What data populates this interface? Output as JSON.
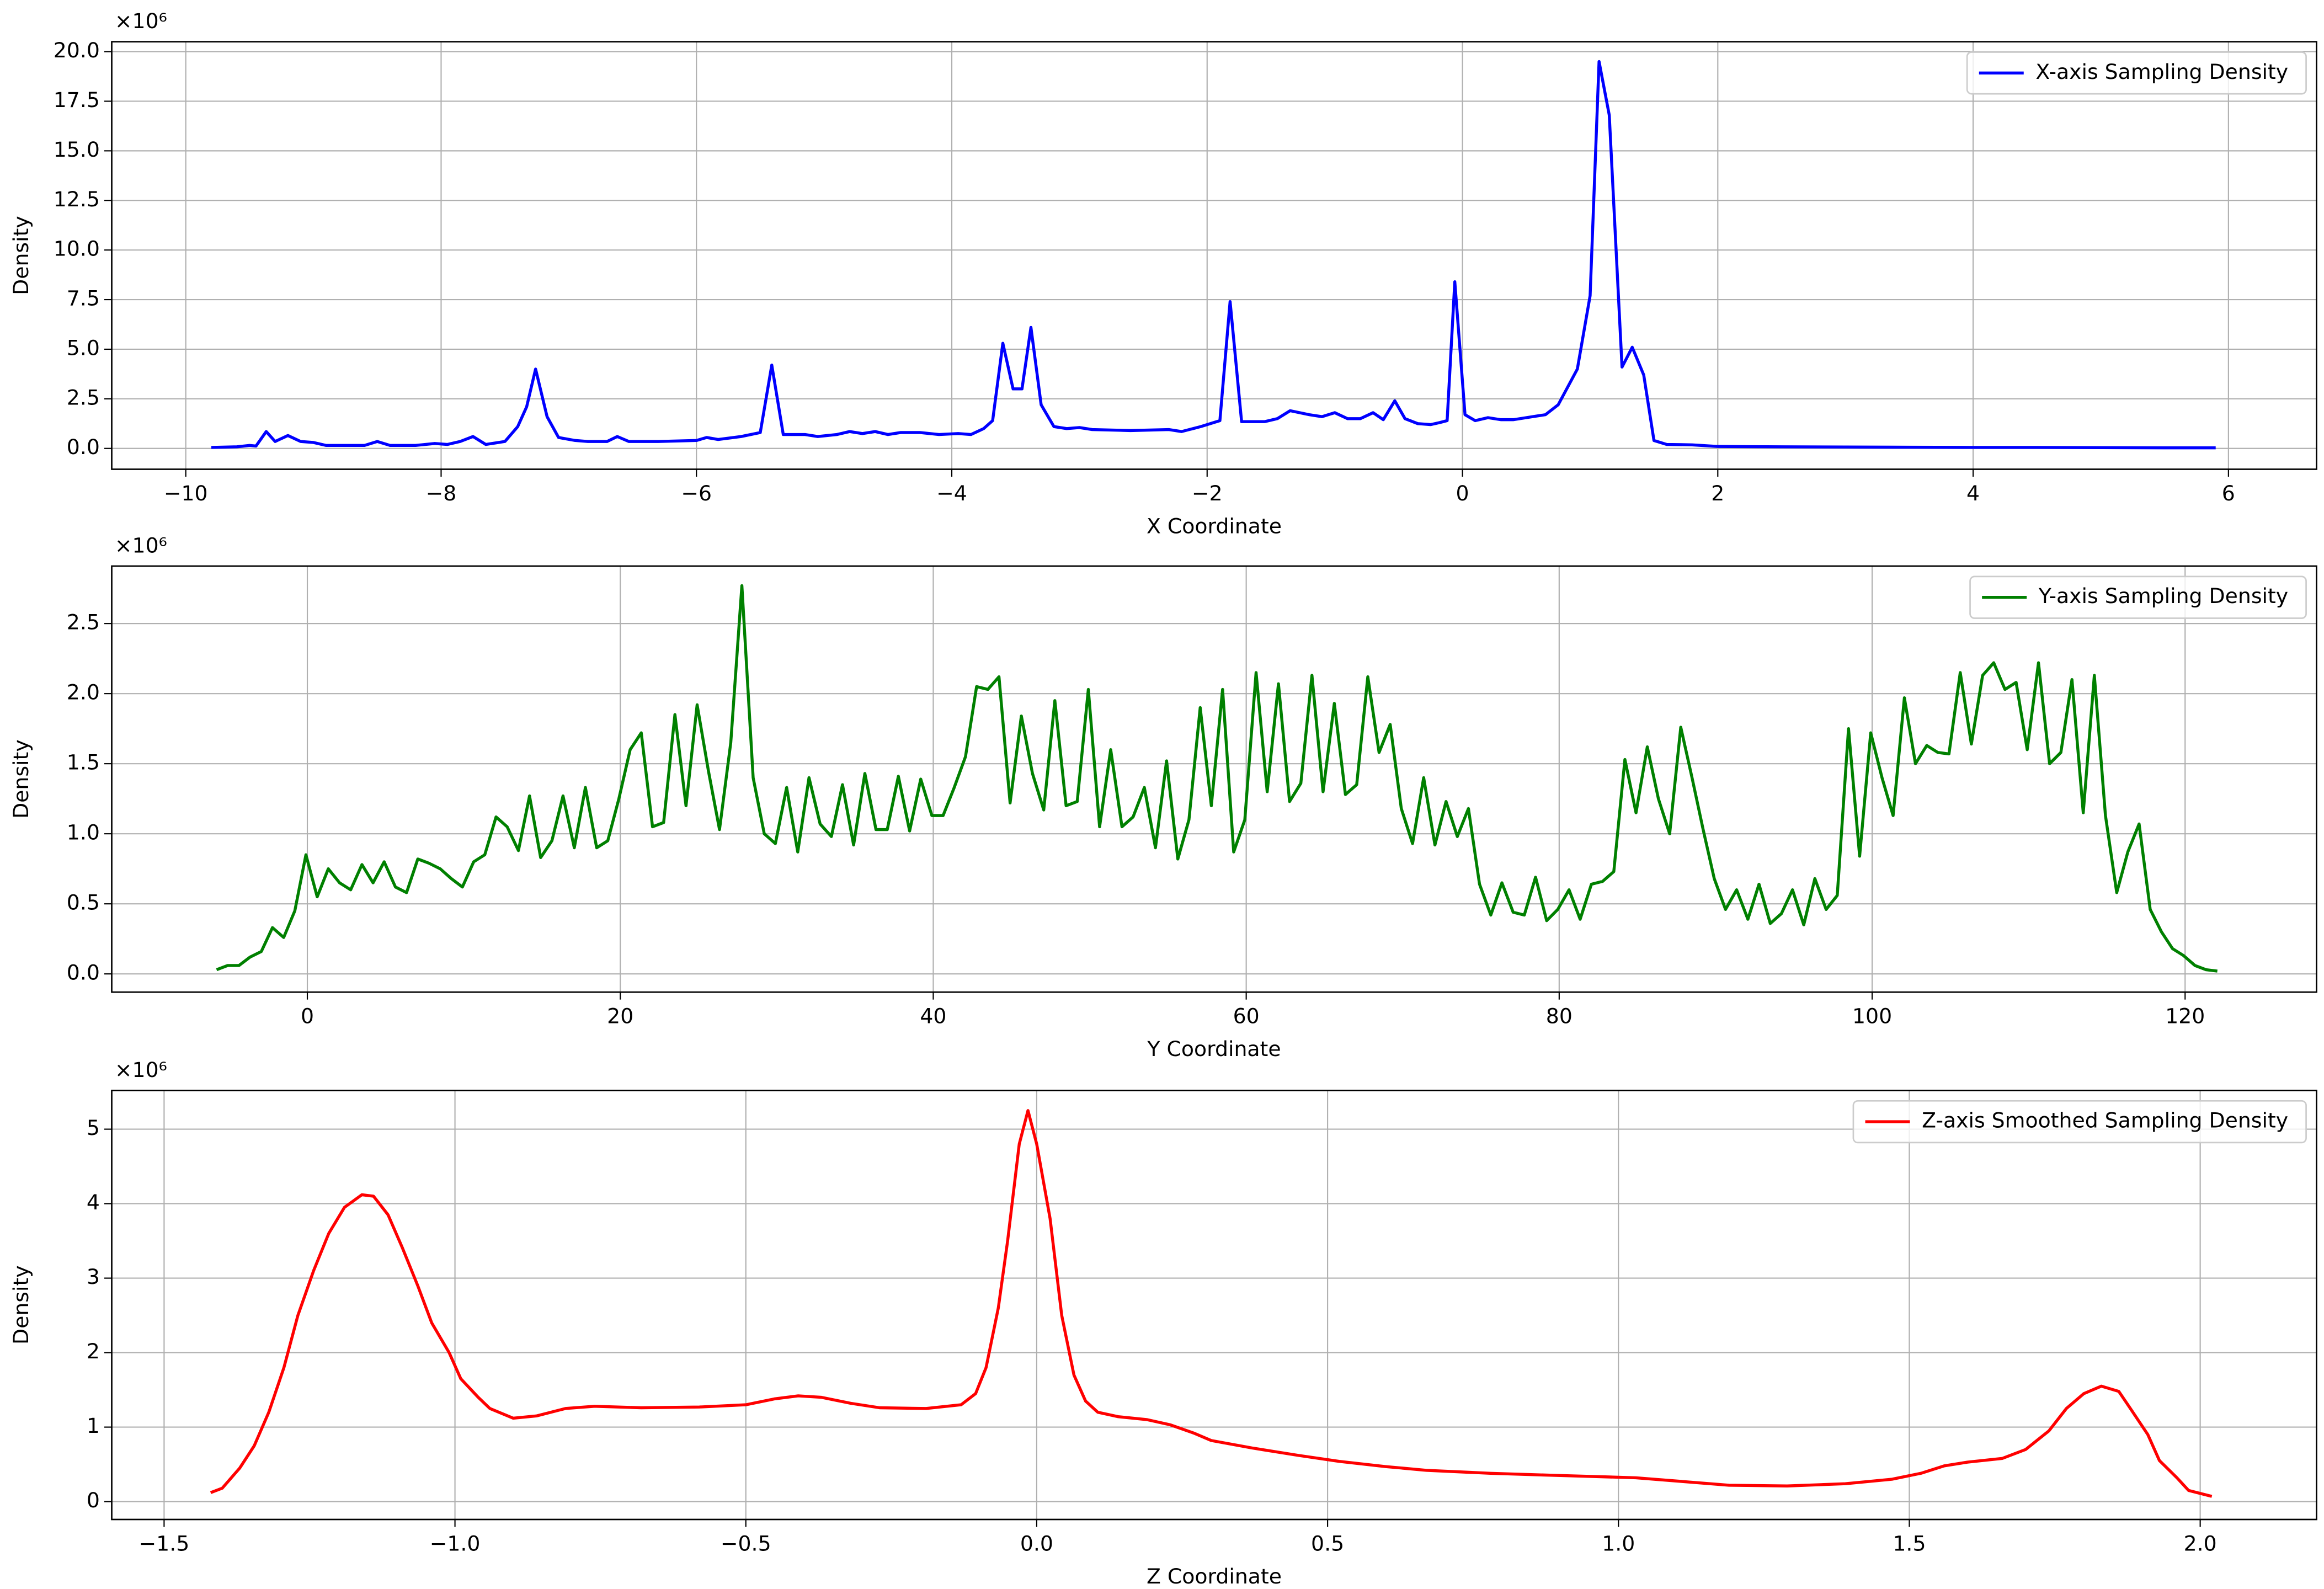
{
  "chart_data": [
    {
      "type": "line",
      "x_label": "X Coordinate",
      "y_label": "Density",
      "y_offset_label": "×10⁶",
      "x": [
        -9.8,
        -9.6,
        -9.5,
        -9.45,
        -9.37,
        -9.3,
        -9.2,
        -9.1,
        -9.0,
        -8.9,
        -8.6,
        -8.5,
        -8.4,
        -8.2,
        -8.05,
        -7.95,
        -7.85,
        -7.75,
        -7.65,
        -7.5,
        -7.4,
        -7.33,
        -7.26,
        -7.17,
        -7.08,
        -6.95,
        -6.85,
        -6.7,
        -6.62,
        -6.53,
        -6.3,
        -6.0,
        -5.92,
        -5.83,
        -5.65,
        -5.5,
        -5.41,
        -5.32,
        -5.15,
        -5.05,
        -4.9,
        -4.8,
        -4.7,
        -4.6,
        -4.5,
        -4.4,
        -4.25,
        -4.1,
        -3.95,
        -3.85,
        -3.75,
        -3.68,
        -3.6,
        -3.52,
        -3.45,
        -3.38,
        -3.3,
        -3.2,
        -3.1,
        -3.0,
        -2.9,
        -2.6,
        -2.3,
        -2.2,
        -2.05,
        -1.9,
        -1.82,
        -1.73,
        -1.55,
        -1.45,
        -1.35,
        -1.2,
        -1.1,
        -1.0,
        -0.9,
        -0.8,
        -0.7,
        -0.62,
        -0.53,
        -0.45,
        -0.35,
        -0.25,
        -0.18,
        -0.12,
        -0.06,
        0.02,
        0.1,
        0.2,
        0.3,
        0.4,
        0.5,
        0.65,
        0.75,
        0.9,
        1.0,
        1.07,
        1.15,
        1.25,
        1.33,
        1.42,
        1.5,
        1.6,
        1.8,
        2.0,
        2.5,
        3.0,
        3.5,
        4.0,
        4.5,
        5.0,
        5.5,
        5.9
      ],
      "series": [
        {
          "name": "X-axis Sampling Density",
          "color": "#0000ff",
          "values": [
            0.05,
            0.08,
            0.15,
            0.12,
            0.85,
            0.35,
            0.65,
            0.35,
            0.3,
            0.15,
            0.15,
            0.35,
            0.15,
            0.15,
            0.25,
            0.2,
            0.35,
            0.6,
            0.2,
            0.35,
            1.1,
            2.1,
            4.0,
            1.6,
            0.55,
            0.4,
            0.35,
            0.35,
            0.6,
            0.35,
            0.35,
            0.4,
            0.55,
            0.45,
            0.6,
            0.8,
            4.2,
            0.7,
            0.7,
            0.6,
            0.7,
            0.85,
            0.75,
            0.85,
            0.7,
            0.8,
            0.8,
            0.7,
            0.75,
            0.7,
            1.0,
            1.4,
            5.3,
            3.0,
            3.0,
            6.1,
            2.2,
            1.1,
            1.0,
            1.05,
            0.95,
            0.9,
            0.95,
            0.85,
            1.1,
            1.4,
            7.4,
            1.35,
            1.35,
            1.5,
            1.9,
            1.7,
            1.6,
            1.8,
            1.5,
            1.5,
            1.8,
            1.45,
            2.4,
            1.5,
            1.25,
            1.2,
            1.3,
            1.4,
            8.4,
            1.7,
            1.4,
            1.55,
            1.45,
            1.45,
            1.55,
            1.7,
            2.2,
            4.0,
            7.7,
            19.5,
            16.8,
            4.1,
            5.1,
            3.7,
            0.4,
            0.2,
            0.18,
            0.1,
            0.08,
            0.07,
            0.06,
            0.05,
            0.05,
            0.04,
            0.03,
            0.03
          ]
        }
      ],
      "xlim": [
        -10.58,
        6.69
      ],
      "ylim": [
        -1.05,
        20.5
      ],
      "xticks": [
        {
          "value": -10,
          "label": "−10"
        },
        {
          "value": -8,
          "label": "−8"
        },
        {
          "value": -6,
          "label": "−6"
        },
        {
          "value": -4,
          "label": "−4"
        },
        {
          "value": -2,
          "label": "−2"
        },
        0,
        2,
        4,
        6
      ],
      "yticks": [
        {
          "value": 0,
          "label": "0.0"
        },
        2.5,
        {
          "value": 5,
          "label": "5.0"
        },
        7.5,
        {
          "value": 10,
          "label": "10.0"
        },
        12.5,
        {
          "value": 15,
          "label": "15.0"
        },
        17.5,
        {
          "value": 20,
          "label": "20.0"
        }
      ],
      "grid": true,
      "legend": "upper right"
    },
    {
      "type": "line",
      "x_label": "Y Coordinate",
      "y_label": "Density",
      "y_offset_label": "×10⁶",
      "x": [
        -5.8,
        -5.09,
        -4.37,
        -3.66,
        -2.94,
        -2.23,
        -1.51,
        -0.8,
        -0.09,
        0.63,
        1.34,
        2.06,
        2.77,
        3.49,
        4.2,
        4.91,
        5.63,
        6.34,
        7.06,
        7.77,
        8.49,
        9.2,
        9.91,
        10.63,
        11.34,
        12.06,
        12.77,
        13.49,
        14.2,
        14.91,
        15.63,
        16.34,
        17.06,
        17.77,
        18.49,
        19.2,
        19.91,
        20.63,
        21.34,
        22.06,
        22.77,
        23.49,
        24.2,
        24.91,
        25.63,
        26.34,
        27.06,
        27.77,
        28.49,
        29.2,
        29.91,
        30.63,
        31.34,
        32.06,
        32.77,
        33.49,
        34.2,
        34.91,
        35.63,
        36.34,
        37.06,
        37.77,
        38.49,
        39.2,
        39.91,
        40.63,
        41.34,
        42.06,
        42.77,
        43.49,
        44.2,
        44.91,
        45.63,
        46.34,
        47.06,
        47.77,
        48.49,
        49.2,
        49.91,
        50.63,
        51.34,
        52.06,
        52.77,
        53.49,
        54.2,
        54.91,
        55.63,
        56.34,
        57.06,
        57.77,
        58.49,
        59.2,
        59.91,
        60.63,
        61.34,
        62.06,
        62.77,
        63.49,
        64.2,
        64.91,
        65.63,
        66.34,
        67.06,
        67.77,
        68.49,
        69.2,
        69.91,
        70.63,
        71.34,
        72.06,
        72.77,
        73.49,
        74.2,
        74.91,
        75.63,
        76.34,
        77.06,
        77.77,
        78.49,
        79.2,
        79.91,
        80.63,
        81.34,
        82.06,
        82.77,
        83.49,
        84.2,
        84.91,
        85.63,
        86.34,
        87.06,
        87.77,
        88.49,
        89.2,
        89.91,
        90.63,
        91.34,
        92.06,
        92.77,
        93.49,
        94.2,
        94.91,
        95.63,
        96.34,
        97.06,
        97.77,
        98.49,
        99.2,
        99.91,
        100.63,
        101.34,
        102.06,
        102.77,
        103.49,
        104.2,
        104.91,
        105.63,
        106.34,
        107.06,
        107.77,
        108.49,
        109.2,
        109.91,
        110.63,
        111.34,
        112.06,
        112.77,
        113.49,
        114.2,
        114.91,
        115.63,
        116.34,
        117.06,
        117.77,
        118.49,
        119.2,
        119.91,
        120.63,
        121.34,
        122.06
      ],
      "series": [
        {
          "name": "Y-axis Sampling Density",
          "color": "#008000",
          "values": [
            0.03,
            0.06,
            0.06,
            0.12,
            0.16,
            0.33,
            0.26,
            0.45,
            0.85,
            0.55,
            0.75,
            0.65,
            0.6,
            0.78,
            0.65,
            0.8,
            0.62,
            0.58,
            0.82,
            0.79,
            0.75,
            0.68,
            0.62,
            0.8,
            0.85,
            1.12,
            1.05,
            0.88,
            1.27,
            0.83,
            0.95,
            1.27,
            0.9,
            1.33,
            0.9,
            0.95,
            1.25,
            1.6,
            1.72,
            1.05,
            1.08,
            1.85,
            1.2,
            1.92,
            1.45,
            1.03,
            1.65,
            2.77,
            1.4,
            1.0,
            0.93,
            1.33,
            0.87,
            1.4,
            1.07,
            0.98,
            1.35,
            0.92,
            1.43,
            1.03,
            1.03,
            1.41,
            1.02,
            1.39,
            1.13,
            1.13,
            1.33,
            1.55,
            2.05,
            2.03,
            2.12,
            1.22,
            1.84,
            1.43,
            1.17,
            1.95,
            1.2,
            1.23,
            2.03,
            1.05,
            1.6,
            1.05,
            1.12,
            1.33,
            0.9,
            1.52,
            0.82,
            1.1,
            1.9,
            1.2,
            2.03,
            0.87,
            1.1,
            2.15,
            1.3,
            2.07,
            1.23,
            1.36,
            2.13,
            1.3,
            1.93,
            1.28,
            1.35,
            2.12,
            1.58,
            1.78,
            1.18,
            0.93,
            1.4,
            0.92,
            1.23,
            0.98,
            1.18,
            0.64,
            0.42,
            0.65,
            0.44,
            0.42,
            0.69,
            0.38,
            0.46,
            0.6,
            0.39,
            0.64,
            0.66,
            0.73,
            1.53,
            1.15,
            1.62,
            1.25,
            1.0,
            1.76,
            1.4,
            1.03,
            0.68,
            0.46,
            0.6,
            0.39,
            0.64,
            0.36,
            0.43,
            0.6,
            0.35,
            0.68,
            0.46,
            0.56,
            1.75,
            0.84,
            1.72,
            1.4,
            1.13,
            1.97,
            1.5,
            1.63,
            1.58,
            1.57,
            2.15,
            1.64,
            2.13,
            2.22,
            2.03,
            2.08,
            1.6,
            2.22,
            1.5,
            1.58,
            2.1,
            1.15,
            2.13,
            1.13,
            0.58,
            0.87,
            1.07,
            0.46,
            0.3,
            0.18,
            0.13,
            0.06,
            0.03,
            0.02
          ]
        }
      ],
      "xlim": [
        -12.5,
        128.4
      ],
      "ylim": [
        -0.13,
        2.91
      ],
      "xticks": [
        0,
        20,
        40,
        60,
        80,
        100,
        120
      ],
      "yticks": [
        {
          "value": 0,
          "label": "0.0"
        },
        0.5,
        {
          "value": 1,
          "label": "1.0"
        },
        1.5,
        {
          "value": 2,
          "label": "2.0"
        },
        2.5
      ],
      "grid": true,
      "legend": "upper right"
    },
    {
      "type": "line",
      "x_label": "Z Coordinate",
      "y_label": "Density",
      "y_offset_label": "×10⁶",
      "x": [
        -1.42,
        -1.4,
        -1.37,
        -1.345,
        -1.32,
        -1.294,
        -1.27,
        -1.243,
        -1.217,
        -1.19,
        -1.16,
        -1.14,
        -1.115,
        -1.09,
        -1.064,
        -1.04,
        -1.01,
        -0.99,
        -0.96,
        -0.94,
        -0.9,
        -0.86,
        -0.81,
        -0.76,
        -0.68,
        -0.58,
        -0.5,
        -0.45,
        -0.41,
        -0.37,
        -0.32,
        -0.27,
        -0.19,
        -0.13,
        -0.105,
        -0.087,
        -0.066,
        -0.05,
        -0.03,
        -0.015,
        0.0,
        0.023,
        0.043,
        0.064,
        0.084,
        0.105,
        0.14,
        0.19,
        0.23,
        0.27,
        0.3,
        0.37,
        0.45,
        0.52,
        0.6,
        0.67,
        0.78,
        0.9,
        1.03,
        1.11,
        1.19,
        1.29,
        1.39,
        1.47,
        1.52,
        1.56,
        1.6,
        1.66,
        1.7,
        1.74,
        1.77,
        1.8,
        1.83,
        1.86,
        1.88,
        1.91,
        1.93,
        1.96,
        1.98,
        2.02
      ],
      "series": [
        {
          "name": "Z-axis Smoothed Sampling Density",
          "color": "#ff0000",
          "values": [
            0.12,
            0.18,
            0.45,
            0.75,
            1.2,
            1.8,
            2.5,
            3.1,
            3.6,
            3.95,
            4.12,
            4.1,
            3.85,
            3.4,
            2.9,
            2.4,
            2.0,
            1.65,
            1.4,
            1.25,
            1.12,
            1.15,
            1.25,
            1.28,
            1.26,
            1.27,
            1.3,
            1.38,
            1.42,
            1.4,
            1.32,
            1.26,
            1.25,
            1.3,
            1.45,
            1.8,
            2.6,
            3.5,
            4.8,
            5.25,
            4.8,
            3.8,
            2.5,
            1.7,
            1.35,
            1.2,
            1.14,
            1.1,
            1.03,
            0.92,
            0.82,
            0.72,
            0.62,
            0.54,
            0.47,
            0.42,
            0.38,
            0.35,
            0.32,
            0.27,
            0.22,
            0.21,
            0.24,
            0.3,
            0.38,
            0.48,
            0.53,
            0.58,
            0.7,
            0.95,
            1.25,
            1.45,
            1.55,
            1.48,
            1.25,
            0.9,
            0.55,
            0.32,
            0.15,
            0.07
          ]
        }
      ],
      "xlim": [
        -1.59,
        2.2
      ],
      "ylim": [
        -0.24,
        5.52
      ],
      "xticks": [
        {
          "value": -1.5,
          "label": "−1.5"
        },
        {
          "value": -1,
          "label": "−1.0"
        },
        {
          "value": -0.5,
          "label": "−0.5"
        },
        {
          "value": 0,
          "label": "0.0"
        },
        0.5,
        {
          "value": 1,
          "label": "1.0"
        },
        1.5,
        {
          "value": 2,
          "label": "2.0"
        }
      ],
      "yticks": [
        0,
        1,
        2,
        3,
        4,
        5
      ],
      "grid": true,
      "legend": "upper right"
    }
  ]
}
